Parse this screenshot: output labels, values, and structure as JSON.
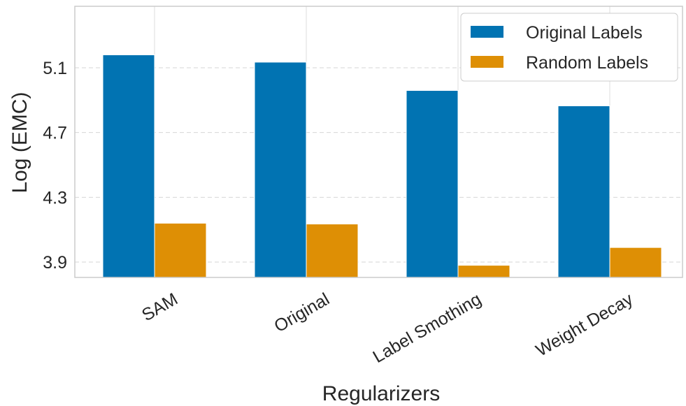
{
  "chart_data": {
    "type": "bar",
    "title": "",
    "xlabel": "Regularizers",
    "ylabel": "Log (EMC)",
    "categories": [
      "SAM",
      "Original",
      "Label Smothing",
      "Weight Decay"
    ],
    "series": [
      {
        "name": "Original Labels",
        "color": "#0173b2",
        "values": [
          5.18,
          5.135,
          4.96,
          4.865
        ]
      },
      {
        "name": "Random Labels",
        "color": "#de8f05",
        "values": [
          4.14,
          4.135,
          3.88,
          3.99
        ]
      }
    ],
    "yticks": [
      "3.9",
      "4.3",
      "4.7",
      "5.1"
    ],
    "ylim": [
      3.805,
      5.48
    ],
    "grid": true,
    "legend_position": "top-right"
  }
}
